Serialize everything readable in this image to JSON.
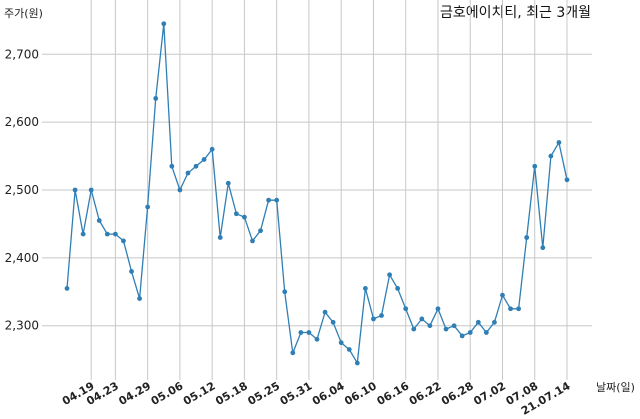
{
  "chart_data": {
    "type": "line",
    "title": "금호에이치티, 최근 3개월",
    "ylabel": "주가(원)",
    "xlabel": "날짜(일)",
    "ylim": [
      2220,
      2780
    ],
    "yticks": [
      2300,
      2400,
      2500,
      2600,
      2700
    ],
    "ytick_labels": [
      "2,300",
      "2,400",
      "2,500",
      "2,600",
      "2,700"
    ],
    "xtick_labels": [
      "04.19",
      "04.23",
      "04.29",
      "05.06",
      "05.12",
      "05.18",
      "05.25",
      "05.31",
      "06.04",
      "06.10",
      "06.16",
      "06.22",
      "06.28",
      "07.02",
      "07.08",
      "21.07.14"
    ],
    "xtick_index": [
      3,
      6,
      10,
      14,
      18,
      22,
      26,
      30,
      34,
      38,
      42,
      46,
      50,
      54,
      58,
      62
    ],
    "grid": true,
    "series": [
      {
        "color": "#2f7fb5",
        "values": [
          2355,
          2500,
          2435,
          2500,
          2455,
          2435,
          2435,
          2425,
          2380,
          2340,
          2475,
          2635,
          2745,
          2535,
          2500,
          2525,
          2535,
          2545,
          2560,
          2430,
          2510,
          2465,
          2460,
          2425,
          2440,
          2485,
          2485,
          2350,
          2260,
          2290,
          2290,
          2280,
          2320,
          2305,
          2275,
          2265,
          2245,
          2355,
          2310,
          2315,
          2375,
          2355,
          2325,
          2295,
          2310,
          2300,
          2325,
          2295,
          2300,
          2285,
          2290,
          2305,
          2290,
          2305,
          2345,
          2325,
          2325,
          2430,
          2535,
          2415,
          2550,
          2570,
          2515
        ]
      }
    ]
  }
}
